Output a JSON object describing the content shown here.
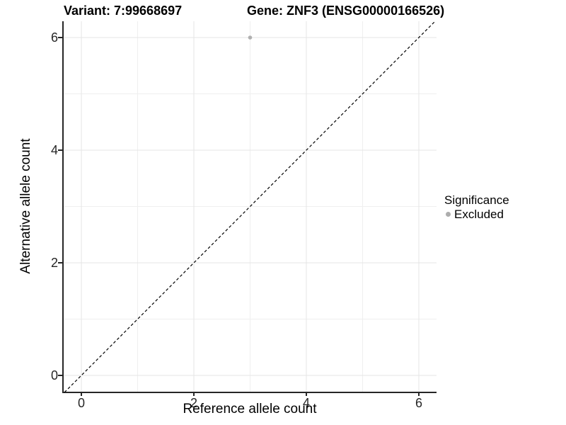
{
  "titles": {
    "variant": "Variant: 7:99668697",
    "gene": "Gene: ZNF3 (ENSG00000166526)"
  },
  "axes": {
    "x": {
      "label": "Reference allele count"
    },
    "y": {
      "label": "Alternative allele count"
    }
  },
  "legend": {
    "title": "Significance",
    "items": [
      {
        "label": "Excluded",
        "color": "#adadad"
      }
    ]
  },
  "colors": {
    "background": "#ffffff",
    "axis_line": "#262626",
    "tick_mark": "#262626",
    "grid_major": "#e4e4e4",
    "grid_minor": "#efefef",
    "identity_line": "#000000",
    "point": "#b0b0b0",
    "text": "#000000"
  },
  "chart_data": {
    "type": "scatter",
    "title": "Variant: 7:99668697 | Gene: ZNF3 (ENSG00000166526)",
    "xlabel": "Reference allele count",
    "ylabel": "Alternative allele count",
    "xlim": [
      -0.3,
      6.3
    ],
    "ylim": [
      -0.3,
      6.3
    ],
    "x_ticks": [
      0,
      2,
      4,
      6
    ],
    "y_ticks": [
      0,
      2,
      4,
      6
    ],
    "x_minor_ticks": [
      1,
      3,
      5
    ],
    "y_minor_ticks": [
      1,
      3,
      5
    ],
    "grid": "on",
    "legend_position": "right",
    "series": [
      {
        "name": "Excluded",
        "color": "#b0b0b0",
        "points": [
          {
            "x": 3,
            "y": 6
          }
        ]
      }
    ],
    "reference_line": {
      "type": "identity y=x",
      "style": "dashed",
      "color": "#000000"
    }
  }
}
